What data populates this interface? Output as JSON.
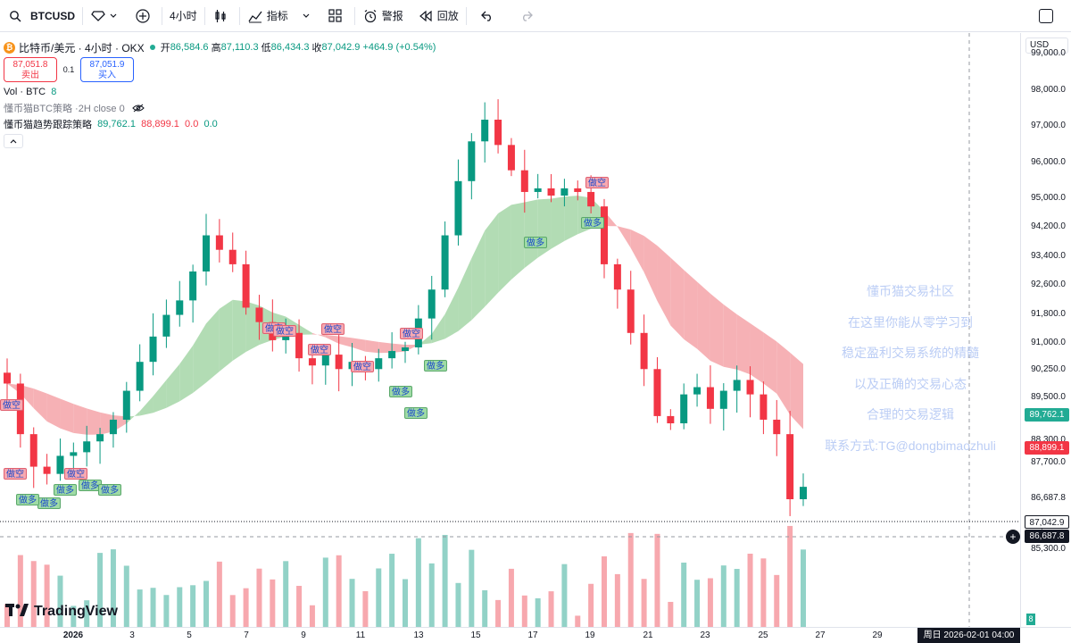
{
  "toolbar": {
    "symbol": "BTCUSD",
    "interval": "4小时",
    "indicators_label": "指标",
    "alert_label": "警报",
    "replay_label": "回放"
  },
  "legend": {
    "title": "比特币/美元 · 4小时 · OKX",
    "open_label": "开",
    "open": "86,584.6",
    "high_label": "高",
    "high": "87,110.3",
    "low_label": "低",
    "low": "86,434.3",
    "close_label": "收",
    "close": "87,042.9",
    "change": "+464.9 (+0.54%)",
    "sell_price": "87,051.8",
    "sell_label": "卖出",
    "spread": "0.1",
    "buy_price": "87,051.9",
    "buy_label": "买入",
    "vol_label": "Vol · BTC",
    "vol_value": "8",
    "strategy1": "懂币猫BTC策略 ·2H close 0",
    "strategy2_name": "懂币猫趋势跟踪策略",
    "strategy2_v1": "89,762.1",
    "strategy2_v2": "88,899.1",
    "strategy2_v3": "0.0",
    "strategy2_v4": "0.0"
  },
  "watermark": {
    "lines": [
      "懂币猫交易社区",
      "在这里你能从零学习到",
      "稳定盈利交易系统的精髓",
      "以及正确的交易心态",
      "合理的交易逻辑",
      "联系方式:TG@dongbimaozhuli"
    ]
  },
  "price_axis": {
    "currency": "USD",
    "ticks": [
      "99,000.0",
      "98,000.0",
      "97,000.0",
      "96,000.0",
      "95,000.0",
      "94,200.0",
      "93,400.0",
      "92,600.0",
      "91,800.0",
      "91,000.0",
      "90,250.0",
      "89,500.0",
      "88,300.0",
      "87,700.0",
      "86,687.8",
      "85,900.0",
      "85,300.0"
    ],
    "tag_upper_band": "89,762.1",
    "tag_lower_band": "88,899.1",
    "tag_last_price": "87,042.9",
    "tag_crosshair": "86,687.8",
    "vol_tag": "8"
  },
  "time_axis": {
    "labels": [
      "2026",
      "3",
      "5",
      "7",
      "9",
      "11",
      "13",
      "15",
      "17",
      "19",
      "21",
      "23",
      "25",
      "27",
      "29"
    ],
    "cursor": "周日 2026-02-01   04:00"
  },
  "signals": {
    "short_label": "做空",
    "long_label": "做多"
  },
  "brand": "TradingView",
  "colors": {
    "up": "#089981",
    "down": "#f23645",
    "band_green": "#a5d6a7",
    "band_red": "#f4a3a8",
    "crosshair_bg": "#131722"
  },
  "chart_data": {
    "type": "candlestick",
    "symbol": "BTCUSD",
    "interval": "4h",
    "last_close": 87042.9,
    "closes_approx": [
      89900,
      88500,
      87600,
      87400,
      87900,
      88000,
      88300,
      88500,
      88900,
      89700,
      90500,
      91200,
      91800,
      92200,
      93000,
      94000,
      93600,
      93200,
      92000,
      91600,
      91100,
      91300,
      90600,
      90400,
      90700,
      90300,
      90500,
      90300,
      90600,
      90800,
      90900,
      91700,
      92500,
      94000,
      95500,
      96600,
      97200,
      96500,
      95800,
      95200,
      95300,
      95100,
      95300,
      95200,
      94800,
      93200,
      92500,
      91300,
      90300,
      89000,
      88800,
      89600,
      89800,
      89200,
      89700,
      90000,
      89600,
      88900,
      88500,
      86700,
      87042.9
    ],
    "ylim": [
      84600,
      99300
    ]
  }
}
